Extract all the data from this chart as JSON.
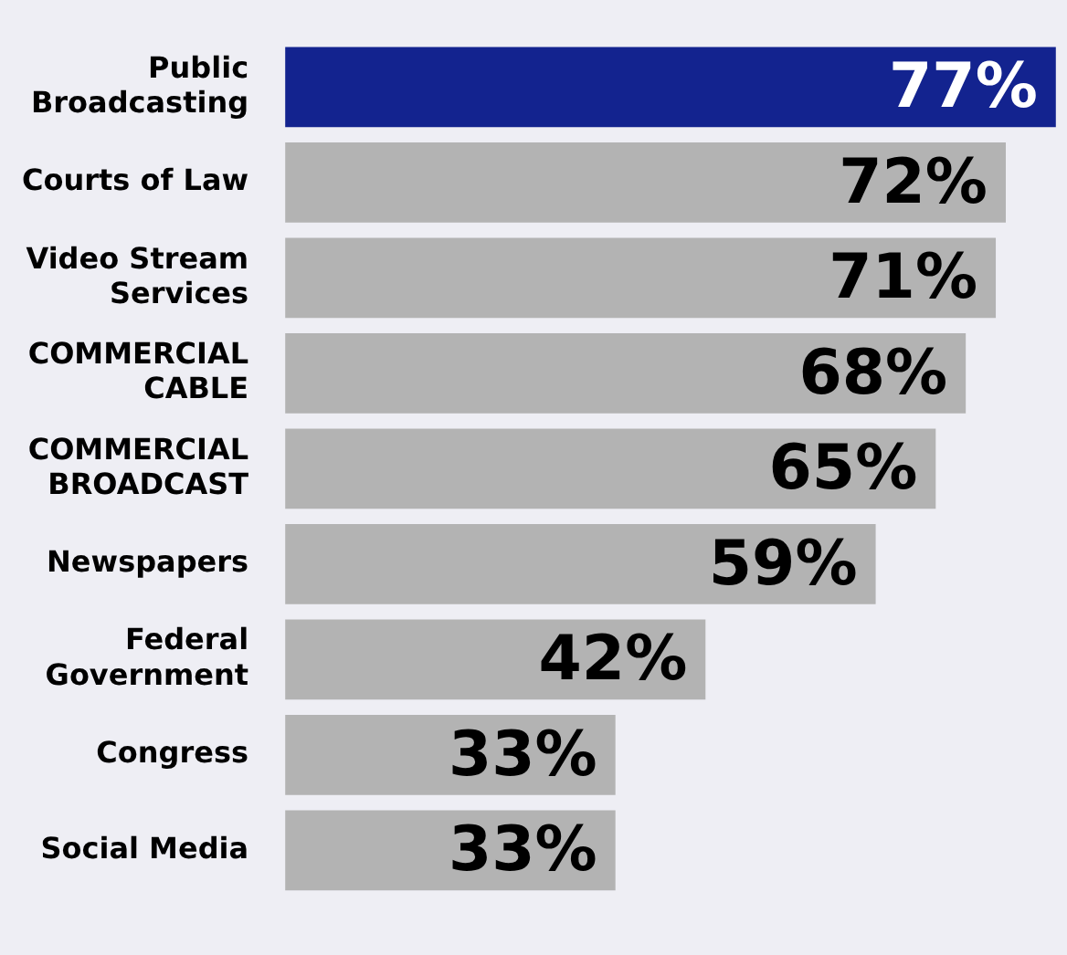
{
  "chart_data": {
    "type": "bar",
    "orientation": "horizontal",
    "categories": [
      "Public Broadcasting",
      "Courts of Law",
      "Video Stream Services",
      "COMMERCIAL CABLE",
      "COMMERCIAL BROADCAST",
      "Newspapers",
      "Federal Government",
      "Congress",
      "Social Media"
    ],
    "values": [
      77,
      72,
      71,
      68,
      65,
      59,
      42,
      33,
      33
    ],
    "value_labels": [
      "77%",
      "72%",
      "71%",
      "68%",
      "65%",
      "59%",
      "42%",
      "33%",
      "33%"
    ],
    "colors": [
      "#13238f",
      "#b3b3b3",
      "#b3b3b3",
      "#b3b3b3",
      "#b3b3b3",
      "#b3b3b3",
      "#b3b3b3",
      "#b3b3b3",
      "#b3b3b3"
    ],
    "legend": false
  }
}
